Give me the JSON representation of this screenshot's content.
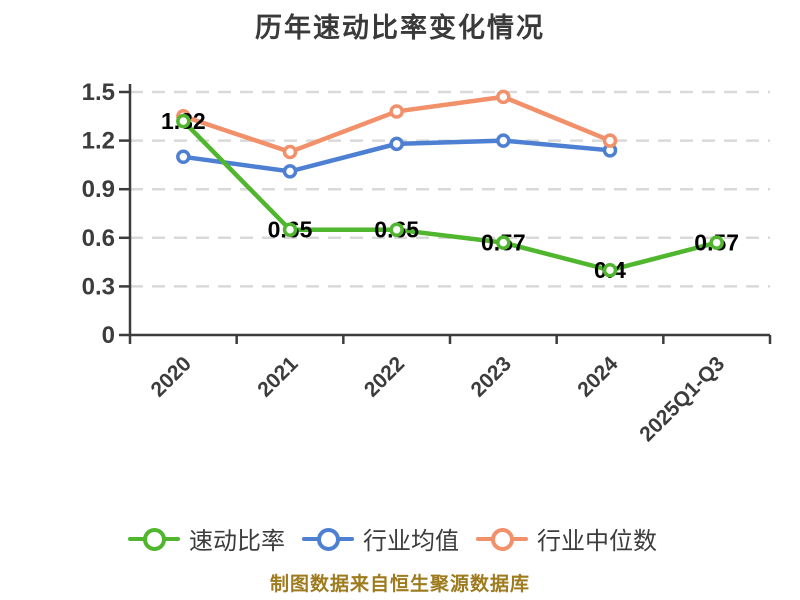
{
  "footer": {
    "text": "制图数据来自恒生聚源数据库"
  },
  "colors": {
    "quick_ratio": "#4fb62e",
    "industry_avg": "#4d7fd2",
    "industry_median": "#f2906a",
    "axis": "#3c3c3c",
    "gridline": "#d9d9d9",
    "data_label": "#000000",
    "title_text": "#3a3a3a",
    "source_text": "#9e7b1e",
    "marker_fill": "#ffffff"
  },
  "chart_data": {
    "type": "line",
    "title": "历年速动比率变化情况",
    "categories": [
      "2020",
      "2021",
      "2022",
      "2023",
      "2024",
      "2025Q1-Q3"
    ],
    "series": [
      {
        "name": "速动比率",
        "key": "quick-ratio",
        "color": "#4fb62e",
        "values": [
          1.32,
          0.65,
          0.65,
          0.57,
          0.4,
          0.57
        ],
        "data_labels": true,
        "marker": "circle-white-fill"
      },
      {
        "name": "行业均值",
        "key": "industry-avg",
        "color": "#4d7fd2",
        "values": [
          1.1,
          1.01,
          1.18,
          1.2,
          1.14,
          null
        ],
        "data_labels": false,
        "marker": "circle-white-fill"
      },
      {
        "name": "行业中位数",
        "key": "industry-median",
        "color": "#f2906a",
        "values": [
          1.35,
          1.13,
          1.38,
          1.47,
          1.2,
          null
        ],
        "data_labels": false,
        "marker": "circle-white-fill"
      }
    ],
    "ylim": [
      0,
      1.5
    ],
    "yticks": [
      0,
      0.3,
      0.6,
      0.9,
      1.2,
      1.5
    ],
    "grid": "horizontal-dashed",
    "x_label_rotation": -45,
    "legend_position": "bottom"
  }
}
